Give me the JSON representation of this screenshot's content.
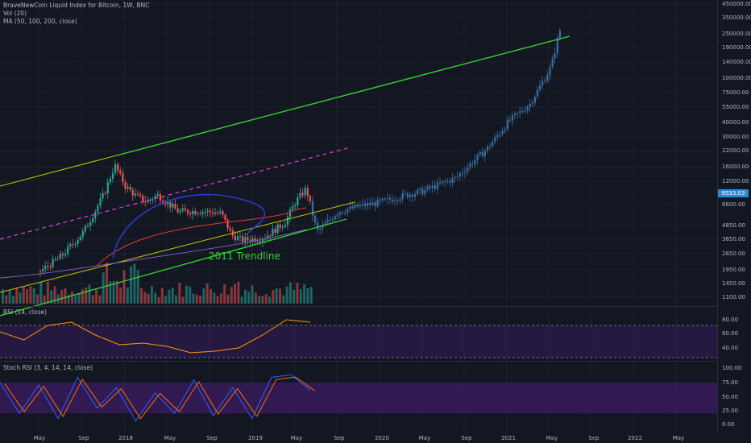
{
  "chart_data": [
    {
      "type": "candlestick",
      "title": "BraveNewCoin Liquid Index for Bitcoin, 1W, BNC",
      "indicators": [
        "Vol (20)",
        "MA (50, 100, 200, close)"
      ],
      "y_scale": "log",
      "ylim": [
        1000,
        480000
      ],
      "yticks": [
        "450000.00",
        "350000.00",
        "250000.00",
        "190000.00",
        "140000.00",
        "100000.00",
        "75000.00",
        "55000.00",
        "40000.00",
        "30000.00",
        "22000.00",
        "16000.00",
        "12000.00",
        "8600.00",
        "6600.00",
        "4850.00",
        "3650.00",
        "2650.00",
        "1950.00",
        "1450.00",
        "1100.00"
      ],
      "current_price_label": "9533.03",
      "annotations": [
        "2011 Trendline"
      ],
      "price_path": [
        {
          "x": "2017-05",
          "y": 1900
        },
        {
          "x": "2017-07",
          "y": 2600
        },
        {
          "x": "2017-09",
          "y": 4200
        },
        {
          "x": "2017-10",
          "y": 6200
        },
        {
          "x": "2017-11",
          "y": 9500
        },
        {
          "x": "2017-12",
          "y": 17000
        },
        {
          "x": "2018-01",
          "y": 11000
        },
        {
          "x": "2018-02",
          "y": 9000
        },
        {
          "x": "2018-03",
          "y": 8000
        },
        {
          "x": "2018-04",
          "y": 9200
        },
        {
          "x": "2018-06",
          "y": 6500
        },
        {
          "x": "2018-08",
          "y": 6600
        },
        {
          "x": "2018-10",
          "y": 6300
        },
        {
          "x": "2018-11",
          "y": 4000
        },
        {
          "x": "2018-12",
          "y": 3600
        },
        {
          "x": "2019-02",
          "y": 3800
        },
        {
          "x": "2019-04",
          "y": 5200
        },
        {
          "x": "2019-05",
          "y": 8000
        },
        {
          "x": "2019-06",
          "y": 10500
        },
        {
          "x": "2019-07",
          "y": 4300
        },
        {
          "x": "2019-09",
          "y": 6500
        },
        {
          "x": "2019-11",
          "y": 7300
        },
        {
          "x": "2020-01",
          "y": 7900
        },
        {
          "x": "2020-03",
          "y": 9000
        },
        {
          "x": "2020-05",
          "y": 10000
        },
        {
          "x": "2020-08",
          "y": 13000
        },
        {
          "x": "2020-11",
          "y": 24000
        },
        {
          "x": "2021-01",
          "y": 42000
        },
        {
          "x": "2021-03",
          "y": 60000
        },
        {
          "x": "2021-05",
          "y": 130000
        },
        {
          "x": "2021-06",
          "y": 320000
        }
      ]
    },
    {
      "type": "line",
      "title": "RSI (14, close)",
      "yticks": [
        "80.00",
        "60.00",
        "40.00"
      ],
      "ylim": [
        30,
        90
      ],
      "series": [
        {
          "values": [
            62,
            52,
            70,
            74,
            58,
            46,
            48,
            44,
            36,
            38,
            42,
            58,
            77,
            74
          ]
        }
      ]
    },
    {
      "type": "line",
      "title": "Stoch RSI (3, 4, 14, 14, close)",
      "yticks": [
        "100.00",
        "75.00",
        "50.00",
        "25.00",
        "0.00"
      ],
      "ylim": [
        -8,
        108
      ],
      "series": [
        {
          "values": [
            80,
            20,
            75,
            10,
            90,
            30,
            70,
            5,
            60,
            20,
            85,
            15,
            70,
            10,
            90,
            95,
            65
          ]
        }
      ]
    }
  ],
  "x_axis": {
    "ticks": [
      "May",
      "Sep",
      "2018",
      "May",
      "Sep",
      "2019",
      "May",
      "Sep",
      "2020",
      "May",
      "Sep",
      "2021",
      "May",
      "Sep",
      "2022",
      "May"
    ]
  },
  "colors": {
    "background": "#131722",
    "up": "#26a69a",
    "down": "#ef5350",
    "projection": "#3a6fa0",
    "trendline": "#33cc33",
    "yellow": "#c8c800",
    "magenta": "#e040e0",
    "rsi": "#ff9800",
    "stoch_k": "#2962ff",
    "stoch_d": "#ff6d00",
    "band": "#4a1d7a"
  }
}
